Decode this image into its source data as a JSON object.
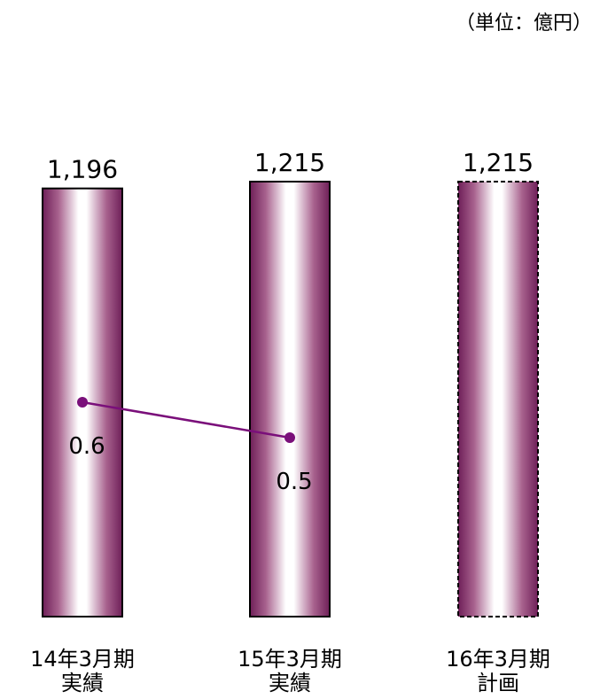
{
  "unit_label": "（単位：億円）",
  "chart_data": {
    "type": "bar",
    "categories": [
      [
        "14年3月期",
        "実績"
      ],
      [
        "15年3月期",
        "実績"
      ],
      [
        "16年3月期",
        "計画"
      ]
    ],
    "series": [
      {
        "type": "bar",
        "values": [
          1196,
          1215,
          1215
        ],
        "value_labels": [
          "1,196",
          "1,215",
          "1,215"
        ],
        "color": "#8b3a6e",
        "projected": [
          false,
          false,
          true
        ]
      },
      {
        "type": "line",
        "values": [
          0.6,
          0.5,
          null
        ],
        "value_labels": [
          "0.6",
          "0.5",
          ""
        ],
        "color": "#7a0f7a"
      }
    ],
    "title": "",
    "xlabel": "",
    "ylabel": "",
    "grid": false,
    "legend": "none"
  }
}
